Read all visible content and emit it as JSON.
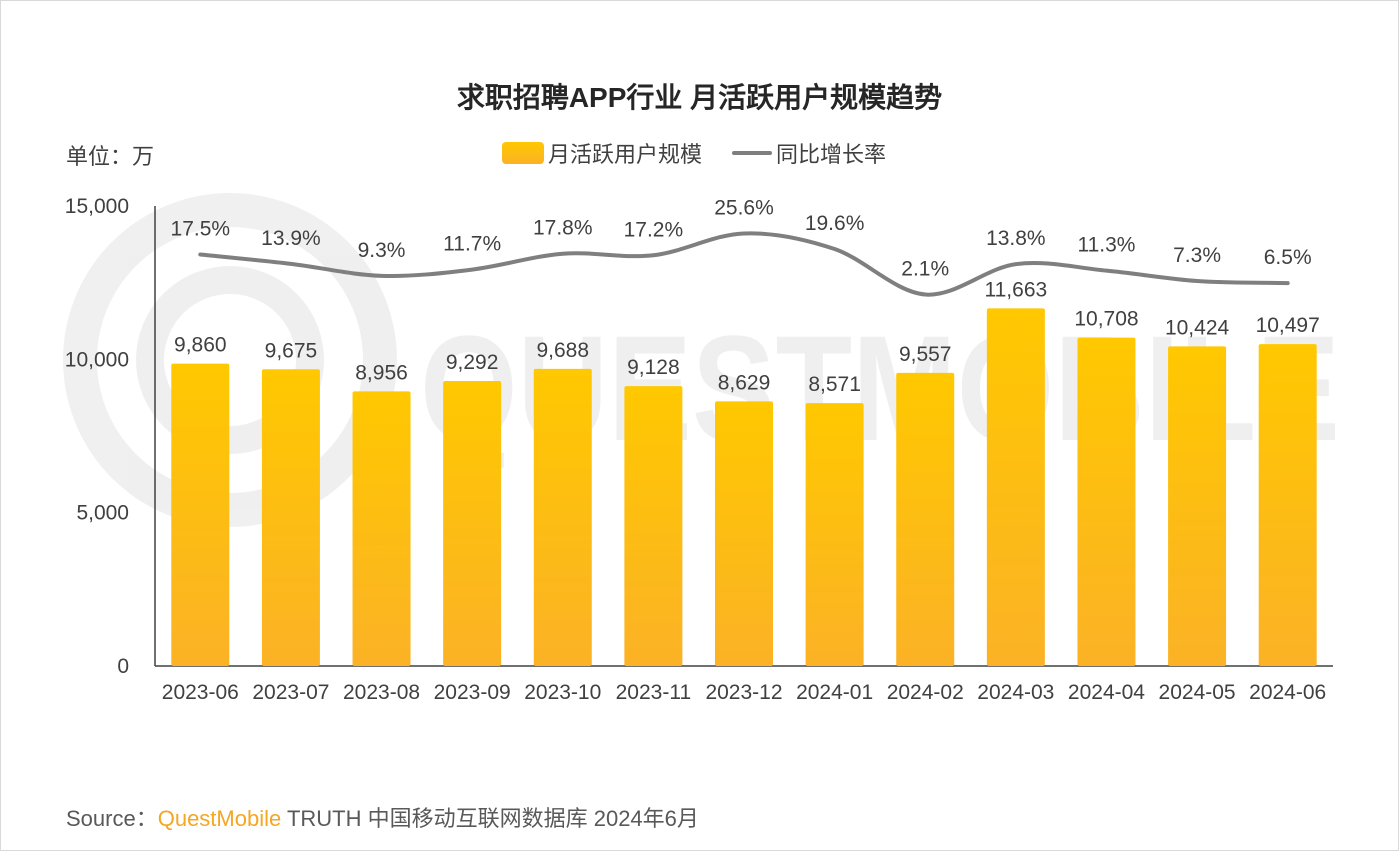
{
  "title": "求职招聘APP行业 月活跃用户规模趋势",
  "unit_label": "单位：万",
  "legend": {
    "bar": "月活跃用户规模",
    "line": "同比增长率"
  },
  "source": {
    "prefix": "Source：",
    "brand": "QuestMobile",
    "rest": "TRUTH 中国移动互联网数据库 2024年6月"
  },
  "watermark": "QUESTMOBILE",
  "colors": {
    "bar_top": "#ffc800",
    "bar_bottom": "#fbb226",
    "line": "#7f7f7f",
    "text": "#404040",
    "brand": "#f5a623"
  },
  "chart_data": {
    "type": "bar",
    "categories": [
      "2023-06",
      "2023-07",
      "2023-08",
      "2023-09",
      "2023-10",
      "2023-11",
      "2023-12",
      "2024-01",
      "2024-02",
      "2024-03",
      "2024-04",
      "2024-05",
      "2024-06"
    ],
    "series": [
      {
        "name": "月活跃用户规模",
        "type": "bar",
        "values": [
          9860,
          9675,
          8956,
          9292,
          9688,
          9128,
          8629,
          8571,
          9557,
          11663,
          10708,
          10424,
          10497
        ],
        "labels": [
          "9,860",
          "9,675",
          "8,956",
          "9,292",
          "9,688",
          "9,128",
          "8,629",
          "8,571",
          "9,557",
          "11,663",
          "10,708",
          "10,424",
          "10,497"
        ]
      },
      {
        "name": "同比增长率",
        "type": "line",
        "values": [
          17.5,
          13.9,
          9.3,
          11.7,
          17.8,
          17.2,
          25.6,
          19.6,
          2.1,
          13.8,
          11.3,
          7.3,
          6.5
        ],
        "labels": [
          "17.5%",
          "13.9%",
          "9.3%",
          "11.7%",
          "17.8%",
          "17.2%",
          "25.6%",
          "19.6%",
          "2.1%",
          "13.8%",
          "11.3%",
          "7.3%",
          "6.5%"
        ]
      }
    ],
    "ylim": [
      0,
      15000
    ],
    "yticks": [
      0,
      5000,
      10000,
      15000
    ],
    "ytick_labels": [
      "0",
      "5,000",
      "10,000",
      "15,000"
    ],
    "grid": false,
    "legend_position": "top-center"
  }
}
